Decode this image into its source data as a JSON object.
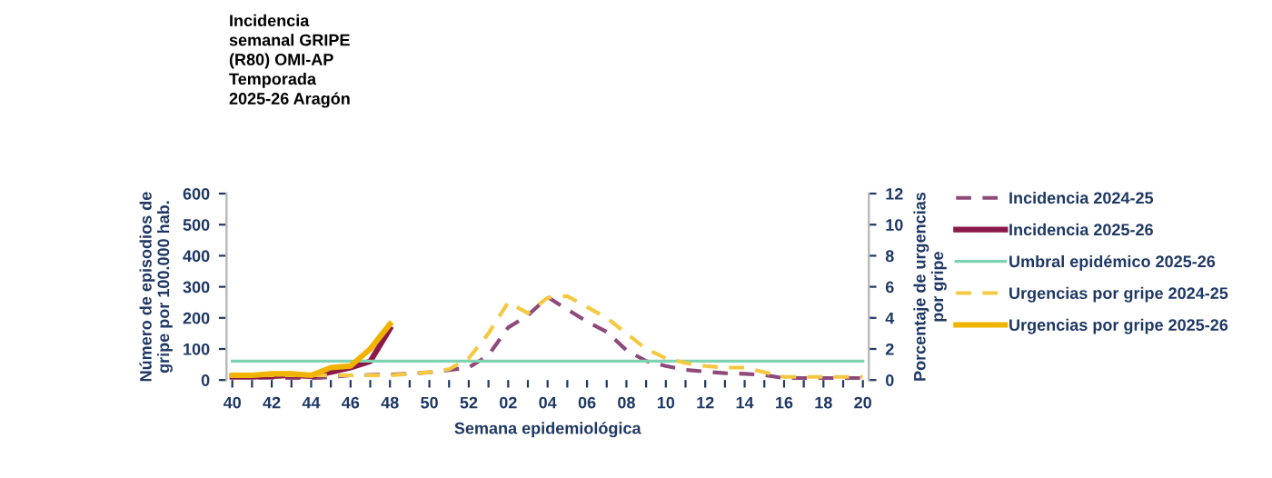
{
  "chart_data": {
    "type": "line",
    "title": "Incidencia\nsemanal GRIPE\n(R80) OMI-AP\nTemporada\n2025-26 Aragón",
    "xlabel": "Semana epidemiológica",
    "ylabel": "Número de episodios de\ngripe por 100.000 hab.",
    "y2label": "Porcentaje de urgencias\npor gripe",
    "categories": [
      "40",
      null,
      "42",
      null,
      "44",
      null,
      "46",
      null,
      "48",
      null,
      "50",
      null,
      "52",
      null,
      "02",
      null,
      "04",
      null,
      "06",
      null,
      "08",
      null,
      "10",
      null,
      "12",
      null,
      "14",
      null,
      "16",
      null,
      "18",
      null,
      "20"
    ],
    "ylim": [
      0,
      600
    ],
    "yticks": [
      0,
      100,
      200,
      300,
      400,
      500,
      600
    ],
    "y2lim": [
      0,
      12
    ],
    "y2ticks": [
      0,
      2,
      4,
      6,
      8,
      10,
      12
    ],
    "grid": false,
    "legend": "right",
    "marker": "none",
    "series": [
      {
        "name": "Incidencia 2024-25",
        "color": "#8e4a7a",
        "line_style": "dashed",
        "values": [
          10,
          8,
          7,
          6,
          5,
          10,
          15,
          16,
          18,
          20,
          25,
          32,
          40,
          80,
          169,
          208,
          267,
          227,
          188,
          155,
          96,
          61,
          45,
          33,
          27,
          22,
          20,
          16,
          6,
          6,
          6,
          6,
          6
        ]
      },
      {
        "name": "Incidencia 2025-26",
        "color": "#8b1a4a",
        "line_style": "solid",
        "values": [
          10,
          10,
          12,
          15,
          12,
          25,
          40,
          60,
          165,
          null,
          null,
          null,
          null,
          null,
          null,
          null,
          null,
          null,
          null,
          null,
          null,
          null,
          null,
          null,
          null,
          null,
          null,
          null,
          null,
          null,
          null,
          null,
          null
        ]
      },
      {
        "name": "Umbral epidémico 2025-26",
        "color": "#7fd3b0",
        "line_style": "solid",
        "values": [
          61,
          61,
          61,
          61,
          61,
          61,
          61,
          61,
          61,
          61,
          61,
          61,
          61,
          61,
          61,
          61,
          61,
          61,
          61,
          61,
          61,
          61,
          61,
          61,
          61,
          61,
          61,
          61,
          61,
          61,
          61,
          61,
          61
        ]
      },
      {
        "name": "Urgencias por gripe 2024-25",
        "color": "#f5c842",
        "line_style": "dashed",
        "axis": "y2",
        "values": [
          0.3,
          0.3,
          0.3,
          0.3,
          0.3,
          0.3,
          0.3,
          0.3,
          0.3,
          0.4,
          0.5,
          0.7,
          1.4,
          3.0,
          5.0,
          4.3,
          5.3,
          5.4,
          4.7,
          4.0,
          3.0,
          2.0,
          1.4,
          1.1,
          0.9,
          0.8,
          0.8,
          0.5,
          0.2,
          0.2,
          0.2,
          0.2,
          0.2
        ]
      },
      {
        "name": "Urgencias por gripe 2025-26",
        "color": "#f0b400",
        "line_style": "solid",
        "axis": "y2",
        "values": [
          0.3,
          0.3,
          0.4,
          0.4,
          0.3,
          0.8,
          0.9,
          2.0,
          3.6,
          null,
          null,
          null,
          null,
          null,
          null,
          null,
          null,
          null,
          null,
          null,
          null,
          null,
          null,
          null,
          null,
          null,
          null,
          null,
          null,
          null,
          null,
          null,
          null
        ]
      }
    ]
  }
}
